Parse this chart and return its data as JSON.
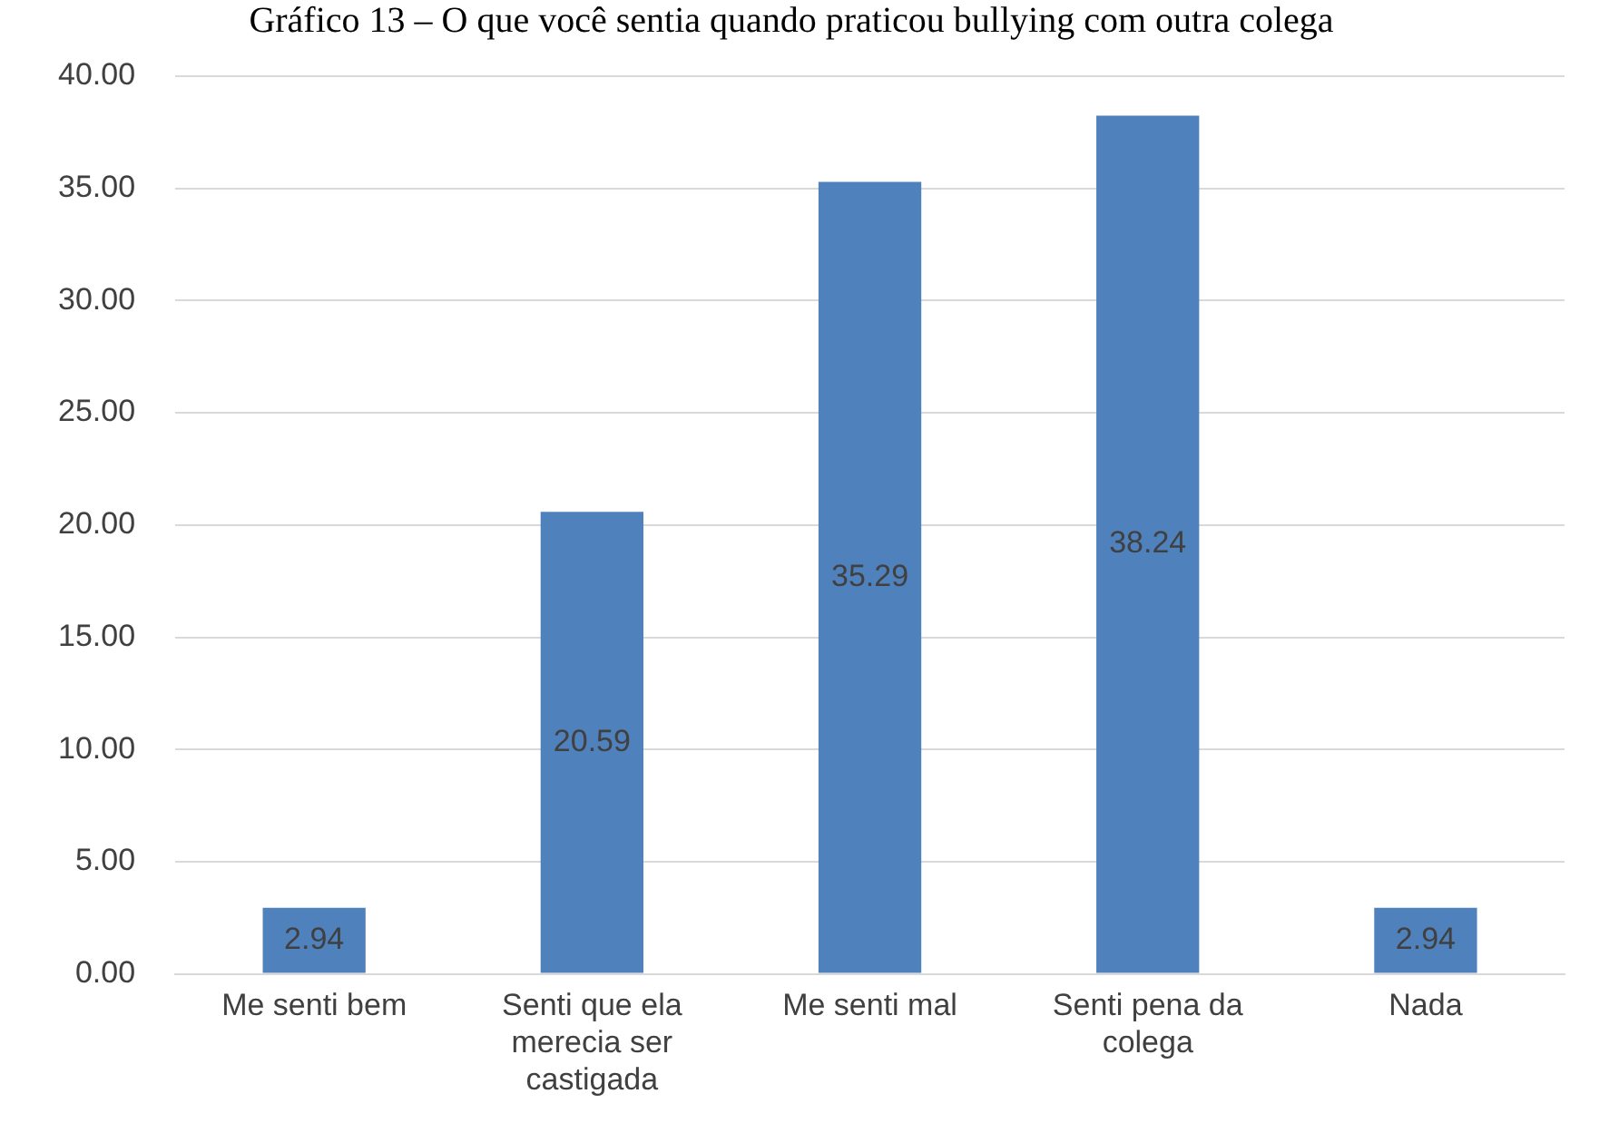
{
  "chart_data": {
    "type": "bar",
    "title": "Gráfico 13 – O que você sentia quando praticou bullying com outra colega",
    "categories": [
      "Me senti bem",
      "Senti que ela merecia ser castigada",
      "Me senti mal",
      "Senti pena da colega",
      "Nada"
    ],
    "values": [
      2.94,
      20.59,
      35.29,
      38.24,
      2.94
    ],
    "color": "#4f81bd",
    "ylim": [
      0,
      40
    ],
    "yticks": [
      {
        "value": 0,
        "label": "0.00"
      },
      {
        "value": 5,
        "label": "5.00"
      },
      {
        "value": 10,
        "label": "10.00"
      },
      {
        "value": 15,
        "label": "15.00"
      },
      {
        "value": 20,
        "label": "20.00"
      },
      {
        "value": 25,
        "label": "25.00"
      },
      {
        "value": 30,
        "label": "30.00"
      },
      {
        "value": 35,
        "label": "35.00"
      },
      {
        "value": 40,
        "label": "40.00"
      }
    ],
    "grid": "y",
    "data_labels": true
  }
}
